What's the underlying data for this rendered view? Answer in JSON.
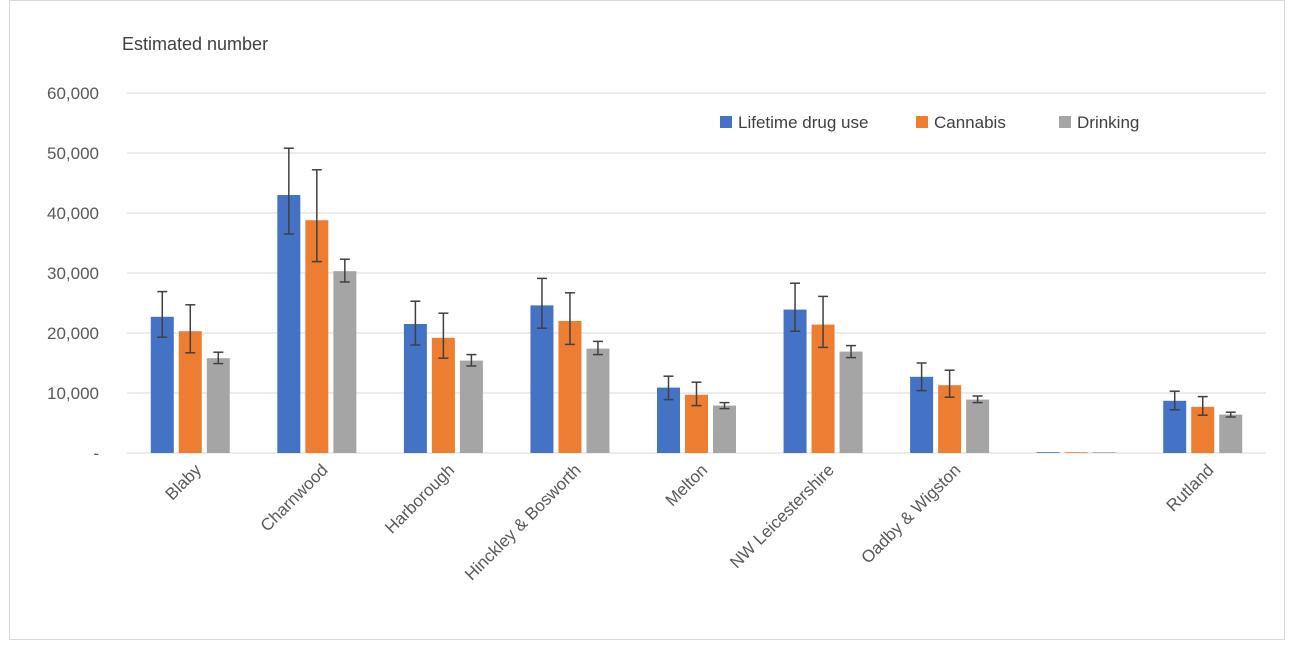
{
  "chart_data": {
    "type": "bar",
    "ylabel": "Estimated number",
    "ylim": [
      0,
      60000
    ],
    "y_ticks": [
      0,
      10000,
      20000,
      30000,
      40000,
      50000,
      60000
    ],
    "y_tick_labels": [
      "-",
      "10,000",
      "20,000",
      "30,000",
      "40,000",
      "50,000",
      "60,000"
    ],
    "grid": true,
    "legend_position": "top-right",
    "categories": [
      "Blaby",
      "Charnwood",
      "Harborough",
      "Hinckley & Bosworth",
      "Melton",
      "NW Leicestershire",
      "Oadby & Wigston",
      "",
      "Rutland"
    ],
    "series": [
      {
        "name": "Lifetime drug use",
        "color": "#4472c4",
        "values": [
          22700,
          43000,
          21500,
          24600,
          10900,
          23900,
          12700,
          0,
          8700
        ],
        "error_low": [
          19300,
          36500,
          18000,
          20800,
          8900,
          20300,
          10400,
          0,
          7200
        ],
        "error_high": [
          26900,
          50800,
          25300,
          29100,
          12800,
          28300,
          15000,
          0,
          10300
        ]
      },
      {
        "name": "Cannabis",
        "color": "#ed7d31",
        "values": [
          20300,
          38800,
          19200,
          22000,
          9700,
          21400,
          11300,
          0,
          7700
        ],
        "error_low": [
          16700,
          31900,
          15800,
          18100,
          7900,
          17600,
          9300,
          0,
          6300
        ],
        "error_high": [
          24700,
          47200,
          23300,
          26700,
          11800,
          26100,
          13800,
          0,
          9400
        ]
      },
      {
        "name": "Drinking",
        "color": "#a5a5a5",
        "values": [
          15800,
          30300,
          15400,
          17400,
          7900,
          16900,
          8900,
          0,
          6400
        ],
        "error_low": [
          14900,
          28500,
          14500,
          16400,
          7400,
          15900,
          8400,
          0,
          6000
        ],
        "error_high": [
          16800,
          32300,
          16400,
          18600,
          8400,
          17900,
          9500,
          0,
          6800
        ]
      }
    ]
  }
}
